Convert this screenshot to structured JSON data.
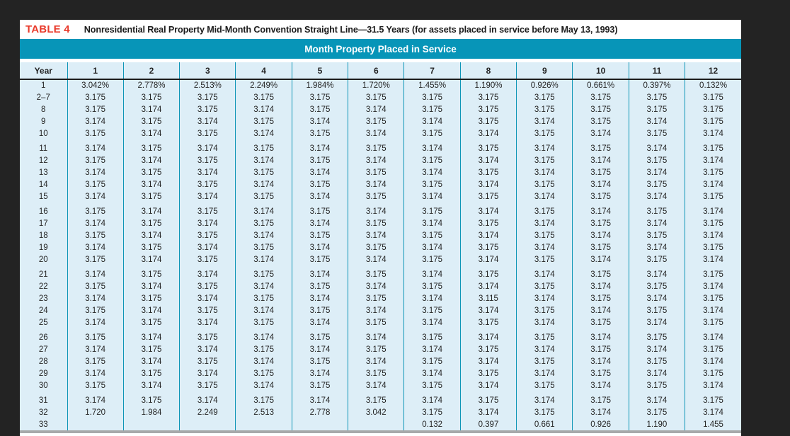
{
  "colors": {
    "page_background": "#232323",
    "label_red": "#e93a2b",
    "band_teal": "#0795b8",
    "body_light_blue": "#ddeef7",
    "grid_teal": "#0d95b6",
    "header_rule_black": "#1d1d1d",
    "bottom_gray_bar": "#a7a9aa"
  },
  "table": {
    "label": "TABLE 4",
    "title": "Nonresidential Real Property Mid-Month Convention Straight Line—31.5 Years (for assets placed in service before May 13, 1993)",
    "band_text": "Month Property Placed in Service",
    "columns": [
      "Year",
      "1",
      "2",
      "3",
      "4",
      "5",
      "6",
      "7",
      "8",
      "9",
      "10",
      "11",
      "12"
    ],
    "row_groups": [
      [
        {
          "year": "1",
          "values": [
            "3.042%",
            "2.778%",
            "2.513%",
            "2.249%",
            "1.984%",
            "1.720%",
            "1.455%",
            "1.190%",
            "0.926%",
            "0.661%",
            "0.397%",
            "0.132%"
          ]
        },
        {
          "year": "2–7",
          "values": [
            "3.175",
            "3.175",
            "3.175",
            "3.175",
            "3.175",
            "3.175",
            "3.175",
            "3.175",
            "3.175",
            "3.175",
            "3.175",
            "3.175"
          ]
        },
        {
          "year": "8",
          "values": [
            "3.175",
            "3.174",
            "3.175",
            "3.174",
            "3.175",
            "3.174",
            "3.175",
            "3.175",
            "3.175",
            "3.175",
            "3.175",
            "3.175"
          ]
        },
        {
          "year": "9",
          "values": [
            "3.174",
            "3.175",
            "3.174",
            "3.175",
            "3.174",
            "3.175",
            "3.174",
            "3.175",
            "3.174",
            "3.175",
            "3.174",
            "3.175"
          ]
        },
        {
          "year": "10",
          "values": [
            "3.175",
            "3.174",
            "3.175",
            "3.174",
            "3.175",
            "3.174",
            "3.175",
            "3.174",
            "3.175",
            "3.174",
            "3.175",
            "3.174"
          ]
        }
      ],
      [
        {
          "year": "11",
          "values": [
            "3.174",
            "3.175",
            "3.174",
            "3.175",
            "3.174",
            "3.175",
            "3.174",
            "3.175",
            "3.174",
            "3.175",
            "3.174",
            "3.175"
          ]
        },
        {
          "year": "12",
          "values": [
            "3.175",
            "3.174",
            "3.175",
            "3.174",
            "3.175",
            "3.174",
            "3.175",
            "3.174",
            "3.175",
            "3.174",
            "3.175",
            "3.174"
          ]
        },
        {
          "year": "13",
          "values": [
            "3.174",
            "3.175",
            "3.174",
            "3.175",
            "3.174",
            "3.175",
            "3.174",
            "3.175",
            "3.174",
            "3.175",
            "3.174",
            "3.175"
          ]
        },
        {
          "year": "14",
          "values": [
            "3.175",
            "3.174",
            "3.175",
            "3.174",
            "3.175",
            "3.174",
            "3.175",
            "3.174",
            "3.175",
            "3.174",
            "3.175",
            "3.174"
          ]
        },
        {
          "year": "15",
          "values": [
            "3.174",
            "3.175",
            "3.174",
            "3.175",
            "3.174",
            "3.175",
            "3.174",
            "3.175",
            "3.174",
            "3.175",
            "3.174",
            "3.175"
          ]
        }
      ],
      [
        {
          "year": "16",
          "values": [
            "3.175",
            "3.174",
            "3.175",
            "3.174",
            "3.175",
            "3.174",
            "3.175",
            "3.174",
            "3.175",
            "3.174",
            "3.175",
            "3.174"
          ]
        },
        {
          "year": "17",
          "values": [
            "3.174",
            "3.175",
            "3.174",
            "3.175",
            "3.174",
            "3.175",
            "3.174",
            "3.175",
            "3.174",
            "3.175",
            "3.174",
            "3.175"
          ]
        },
        {
          "year": "18",
          "values": [
            "3.175",
            "3.174",
            "3.175",
            "3.174",
            "3.175",
            "3.174",
            "3.175",
            "3.174",
            "3.175",
            "3.174",
            "3.175",
            "3.174"
          ]
        },
        {
          "year": "19",
          "values": [
            "3.174",
            "3.175",
            "3.174",
            "3.175",
            "3.174",
            "3.175",
            "3.174",
            "3.175",
            "3.174",
            "3.175",
            "3.174",
            "3.175"
          ]
        },
        {
          "year": "20",
          "values": [
            "3.175",
            "3.174",
            "3.175",
            "3.174",
            "3.175",
            "3.174",
            "3.175",
            "3.174",
            "3.175",
            "3.174",
            "3.175",
            "3.174"
          ]
        }
      ],
      [
        {
          "year": "21",
          "values": [
            "3.174",
            "3.175",
            "3.174",
            "3.175",
            "3.174",
            "3.175",
            "3.174",
            "3.175",
            "3.174",
            "3.175",
            "3.174",
            "3.175"
          ]
        },
        {
          "year": "22",
          "values": [
            "3.175",
            "3.174",
            "3.175",
            "3.174",
            "3.175",
            "3.174",
            "3.175",
            "3.174",
            "3.175",
            "3.174",
            "3.175",
            "3.174"
          ]
        },
        {
          "year": "23",
          "values": [
            "3.174",
            "3.175",
            "3.174",
            "3.175",
            "3.174",
            "3.175",
            "3.174",
            "3.115",
            "3.174",
            "3.175",
            "3.174",
            "3.175"
          ]
        },
        {
          "year": "24",
          "values": [
            "3.175",
            "3.174",
            "3.175",
            "3.174",
            "3.175",
            "3.174",
            "3.175",
            "3.174",
            "3.175",
            "3.174",
            "3.175",
            "3.174"
          ]
        },
        {
          "year": "25",
          "values": [
            "3.174",
            "3.175",
            "3.174",
            "3.175",
            "3.174",
            "3.175",
            "3.174",
            "3.175",
            "3.174",
            "3.175",
            "3.174",
            "3.175"
          ]
        }
      ],
      [
        {
          "year": "26",
          "values": [
            "3.175",
            "3.174",
            "3.175",
            "3.174",
            "3.175",
            "3.174",
            "3.175",
            "3.174",
            "3.175",
            "3.174",
            "3.175",
            "3.174"
          ]
        },
        {
          "year": "27",
          "values": [
            "3.174",
            "3.175",
            "3.174",
            "3.175",
            "3.174",
            "3.175",
            "3.174",
            "3.175",
            "3.174",
            "3.175",
            "3.174",
            "3.175"
          ]
        },
        {
          "year": "28",
          "values": [
            "3.175",
            "3.174",
            "3.175",
            "3.174",
            "3.175",
            "3.174",
            "3.175",
            "3.174",
            "3.175",
            "3.174",
            "3.175",
            "3.174"
          ]
        },
        {
          "year": "29",
          "values": [
            "3.174",
            "3.175",
            "3.174",
            "3.175",
            "3.174",
            "3.175",
            "3.174",
            "3.175",
            "3.174",
            "3.175",
            "3.174",
            "3.175"
          ]
        },
        {
          "year": "30",
          "values": [
            "3.175",
            "3.174",
            "3.175",
            "3.174",
            "3.175",
            "3.174",
            "3.175",
            "3.174",
            "3.175",
            "3.174",
            "3.175",
            "3.174"
          ]
        }
      ],
      [
        {
          "year": "31",
          "values": [
            "3.174",
            "3.175",
            "3.174",
            "3.175",
            "3.174",
            "3.175",
            "3.174",
            "3.175",
            "3.174",
            "3.175",
            "3.174",
            "3.175"
          ]
        },
        {
          "year": "32",
          "values": [
            "1.720",
            "1.984",
            "2.249",
            "2.513",
            "2.778",
            "3.042",
            "3.175",
            "3.174",
            "3.175",
            "3.174",
            "3.175",
            "3.174"
          ]
        },
        {
          "year": "33",
          "values": [
            "",
            "",
            "",
            "",
            "",
            "",
            "0.132",
            "0.397",
            "0.661",
            "0.926",
            "1.190",
            "1.455"
          ]
        }
      ]
    ]
  }
}
